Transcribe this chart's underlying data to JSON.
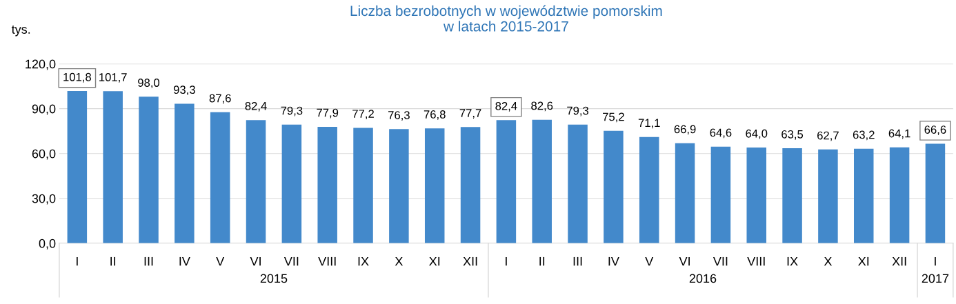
{
  "chart_data": {
    "type": "bar",
    "title": "Liczba bezrobotnych w województwie pomorskim\nw latach 2015-2017",
    "ylabel": "tys.",
    "categories": [
      "I",
      "II",
      "III",
      "IV",
      "V",
      "VI",
      "VII",
      "VIII",
      "IX",
      "X",
      "XI",
      "XII",
      "I",
      "II",
      "III",
      "IV",
      "V",
      "VI",
      "VII",
      "VIII",
      "IX",
      "X",
      "XI",
      "XII",
      "I"
    ],
    "values": [
      101.8,
      101.7,
      98.0,
      93.3,
      87.6,
      82.4,
      79.3,
      77.9,
      77.2,
      76.3,
      76.8,
      77.7,
      82.4,
      82.6,
      79.3,
      75.2,
      71.1,
      66.9,
      64.6,
      64.0,
      63.5,
      62.7,
      63.2,
      64.1,
      66.6
    ],
    "value_labels": [
      "101,8",
      "101,7",
      "98,0",
      "93,3",
      "87,6",
      "82,4",
      "79,3",
      "77,9",
      "77,2",
      "76,3",
      "76,8",
      "77,7",
      "82,4",
      "82,6",
      "79,3",
      "75,2",
      "71,1",
      "66,9",
      "64,6",
      "64,0",
      "63,5",
      "62,7",
      "63,2",
      "64,1",
      "66,6"
    ],
    "color": "#4389cb",
    "annotations": [
      "2015",
      "2016",
      "2017"
    ],
    "ylim": [
      0,
      120
    ],
    "yticks": [
      {
        "value": 0,
        "label": "0,0"
      },
      {
        "value": 30,
        "label": "30,0"
      },
      {
        "value": 60,
        "label": "60,0"
      },
      {
        "value": 90,
        "label": "90,0"
      },
      {
        "value": 120,
        "label": "120,0"
      }
    ],
    "grid": "y",
    "legend": false
  }
}
